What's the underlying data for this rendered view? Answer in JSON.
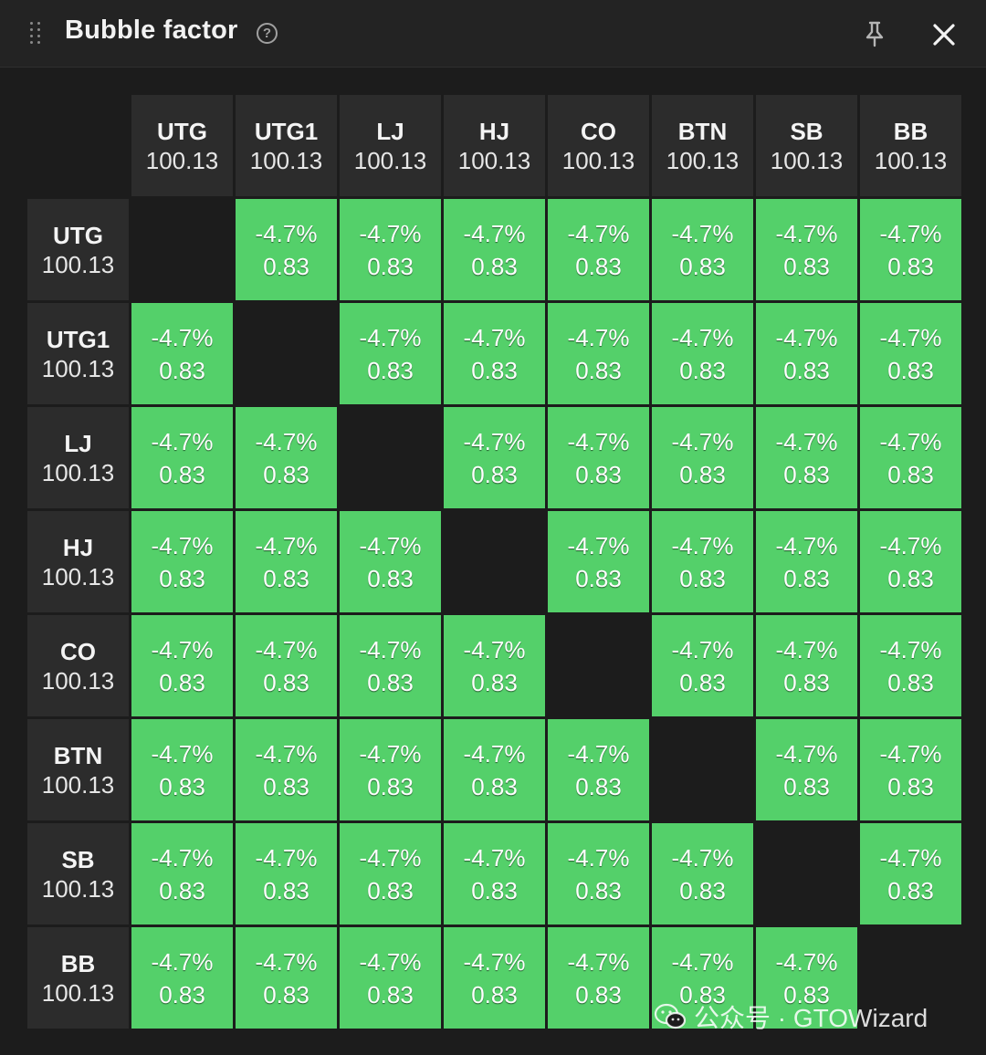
{
  "window": {
    "title": "Bubble factor"
  },
  "positions": [
    "UTG",
    "UTG1",
    "LJ",
    "HJ",
    "CO",
    "BTN",
    "SB",
    "BB"
  ],
  "stacks": [
    "100.13",
    "100.13",
    "100.13",
    "100.13",
    "100.13",
    "100.13",
    "100.13",
    "100.13"
  ],
  "cell": {
    "pct": "-4.7%",
    "bf": "0.83"
  },
  "colors": {
    "value_cell": "#54d06a",
    "header_cell": "#2c2c2c",
    "background": "#1c1c1c"
  },
  "icons": [
    "drag-handle-icon",
    "help-icon",
    "pin-icon",
    "close-icon",
    "wechat-icon"
  ],
  "watermark": {
    "text": "公众号 · GTOWizard"
  }
}
